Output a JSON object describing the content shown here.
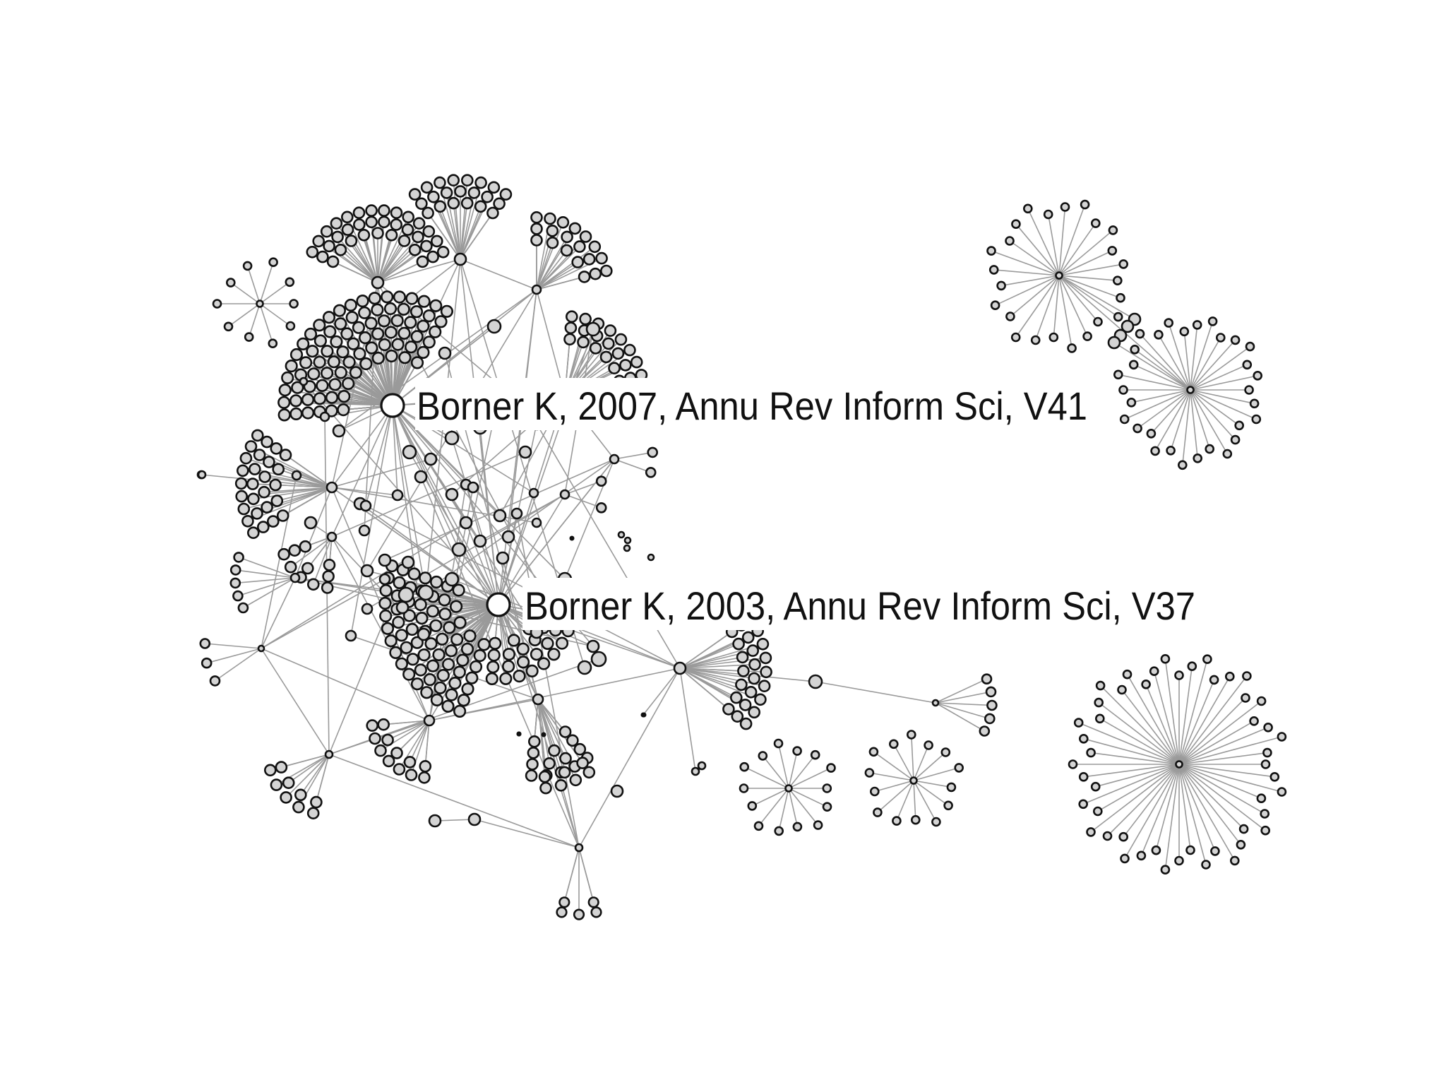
{
  "figure": {
    "type": "citation network",
    "labels": [
      {
        "id": "paper-2007",
        "text": "Borner K, 2007, Annu Rev Inform Sci, V41"
      },
      {
        "id": "paper-2003",
        "text": "Borner K, 2003, Annu Rev Inform Sci, V37"
      }
    ]
  },
  "colors": {
    "edge": "#9a9a9a",
    "node_fill": "#d4d4d4",
    "node_stroke": "#111111",
    "highlight_fill": "#ffffff",
    "background": "#ffffff"
  }
}
